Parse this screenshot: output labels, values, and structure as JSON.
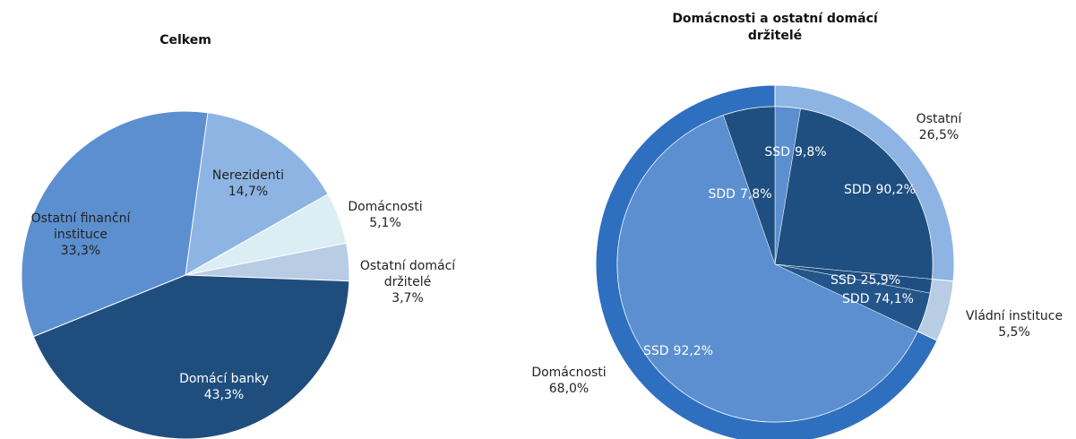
{
  "chart_data": [
    {
      "type": "pie",
      "title": "Celkem",
      "categories": [
        "Nerezidenti",
        "Domácnosti",
        "Ostatní domácí držitelé",
        "Domácí banky",
        "Ostatní finanční instituce"
      ],
      "values": [
        14.7,
        5.1,
        3.7,
        43.3,
        33.3
      ],
      "value_labels": [
        "14,7%",
        "5,1%",
        "3,7%",
        "43,3%",
        "33,3%"
      ],
      "colors": [
        "#8db4e2",
        "#dbeef3",
        "#b8cce4",
        "#1f4e7e",
        "#5b8fd0"
      ]
    },
    {
      "type": "nested_pie",
      "title": "Domácnosti a ostatní domácí držitelé",
      "categories": [
        "Ostatní",
        "Vládní instituce",
        "Domácnosti"
      ],
      "values": [
        26.5,
        5.5,
        68.0
      ],
      "value_labels": [
        "26,5%",
        "5,5%",
        "68,0%"
      ],
      "colors": [
        "#8db4e2",
        "#b8cce4",
        "#2e6fc0"
      ],
      "inner": [
        {
          "labels": [
            "SSD",
            "SDD"
          ],
          "values": [
            9.8,
            90.2
          ],
          "value_labels": [
            "9,8%",
            "90,2%"
          ],
          "colors": [
            "#5b8fd0",
            "#1f4e80"
          ]
        },
        {
          "labels": [
            "SSD",
            "SDD"
          ],
          "values": [
            25.9,
            74.1
          ],
          "value_labels": [
            "25,9%",
            "74,1%"
          ],
          "colors": [
            "#1f4e80",
            "#24558a"
          ]
        },
        {
          "labels": [
            "SSD",
            "SDD"
          ],
          "values": [
            92.2,
            7.8
          ],
          "value_labels": [
            "92,2%",
            "7,8%"
          ],
          "colors": [
            "#5b8fd0",
            "#1f4e80"
          ]
        }
      ]
    }
  ]
}
